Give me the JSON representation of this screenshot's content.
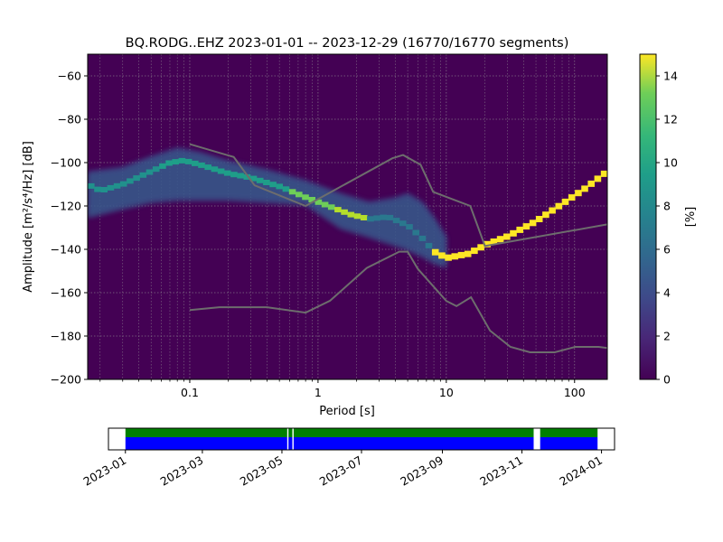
{
  "chart_data": [
    {
      "type": "heatmap",
      "title": "BQ.RODG..EHZ   2023-01-01 -- 2023-12-29  (16770/16770 segments)",
      "xlabel": "Period [s]",
      "ylabel": "Amplitude [m²/s⁴/Hz] [dB]",
      "x_scale": "log",
      "xlim": [
        0.016,
        180
      ],
      "ylim": [
        -200,
        -50
      ],
      "xticks": [
        {
          "value": 0.1,
          "label": "0.1"
        },
        {
          "value": 1,
          "label": "1"
        },
        {
          "value": 10,
          "label": "10"
        },
        {
          "value": 100,
          "label": "100"
        }
      ],
      "yticks": [
        {
          "value": -60,
          "label": "−60"
        },
        {
          "value": -80,
          "label": "−80"
        },
        {
          "value": -100,
          "label": "−100"
        },
        {
          "value": -120,
          "label": "−120"
        },
        {
          "value": -140,
          "label": "−140"
        },
        {
          "value": -160,
          "label": "−160"
        },
        {
          "value": -180,
          "label": "−180"
        },
        {
          "value": -200,
          "label": "−200"
        }
      ],
      "grid": true,
      "background_color": "#440154",
      "mode_curve": {
        "x": [
          0.016,
          0.02,
          0.03,
          0.05,
          0.07,
          0.09,
          0.12,
          0.2,
          0.3,
          0.5,
          0.8,
          1.2,
          1.8,
          2.5,
          3.5,
          5,
          6.5,
          8,
          10,
          15,
          20,
          30,
          50,
          80,
          120,
          180
        ],
        "y": [
          -110,
          -113,
          -110,
          -104,
          -100,
          -99,
          -101,
          -105,
          -107,
          -111,
          -116,
          -120,
          -124,
          -126,
          -125,
          -129,
          -135,
          -141,
          -144,
          -142,
          -138,
          -134,
          -127,
          -119,
          -112,
          -104
        ]
      },
      "spread_upper": {
        "x": [
          0.016,
          0.03,
          0.05,
          0.08,
          0.12,
          0.2,
          0.4,
          0.8,
          1.5,
          2.5,
          4,
          5,
          6.5,
          8,
          10
        ],
        "y": [
          -104,
          -102,
          -97,
          -93,
          -95,
          -99,
          -103,
          -108,
          -114,
          -118,
          -116,
          -114,
          -118,
          -125,
          -134
        ]
      },
      "spread_lower": {
        "x": [
          0.016,
          0.03,
          0.05,
          0.08,
          0.12,
          0.2,
          0.4,
          0.8,
          1.5,
          2.5,
          4,
          5,
          6.5,
          8,
          10
        ],
        "y": [
          -125,
          -121,
          -118,
          -117,
          -117,
          -117,
          -118,
          -119,
          -130,
          -134,
          -138,
          -140,
          -143,
          -146,
          -148
        ]
      },
      "nlnm": {
        "x": [
          0.1,
          0.17,
          0.4,
          0.8,
          1.24,
          2.4,
          4.3,
          5,
          6,
          10,
          12,
          15.6,
          21.9,
          31.6,
          45,
          70,
          101,
          154,
          180
        ],
        "y": [
          -168,
          -166.7,
          -166.7,
          -169.2,
          -163.7,
          -148.6,
          -141.1,
          -141.1,
          -149,
          -163.8,
          -166.2,
          -162.1,
          -177.5,
          -185,
          -187.5,
          -187.5,
          -185,
          -185,
          -185.5
        ]
      },
      "nhnm": {
        "x": [
          0.1,
          0.22,
          0.32,
          0.8,
          3.8,
          4.6,
          6.3,
          7.9,
          15.4,
          20,
          180
        ],
        "y": [
          -91.5,
          -97.4,
          -110.5,
          -120,
          -98,
          -96.5,
          -101,
          -113.5,
          -120,
          -138.5,
          -128.5
        ]
      },
      "colorbar": {
        "label": "[%]",
        "min": 0,
        "max": 15,
        "ticks": [
          "0",
          "2",
          "4",
          "6",
          "8",
          "10",
          "12",
          "14"
        ]
      }
    },
    {
      "type": "bar",
      "xticks": [
        "2023-01",
        "2023-03",
        "2023-05",
        "2023-07",
        "2023-09",
        "2023-11",
        "2024-01"
      ],
      "data_coverage": [
        {
          "start": "2023-01-01",
          "end": "2023-05-05"
        },
        {
          "start": "2023-05-06",
          "end": "2023-05-09"
        },
        {
          "start": "2023-05-10",
          "end": "2023-11-10"
        },
        {
          "start": "2023-11-15",
          "end": "2023-12-29"
        }
      ],
      "colors": {
        "coverage": "#0000ff",
        "processed": "#008000"
      }
    }
  ]
}
